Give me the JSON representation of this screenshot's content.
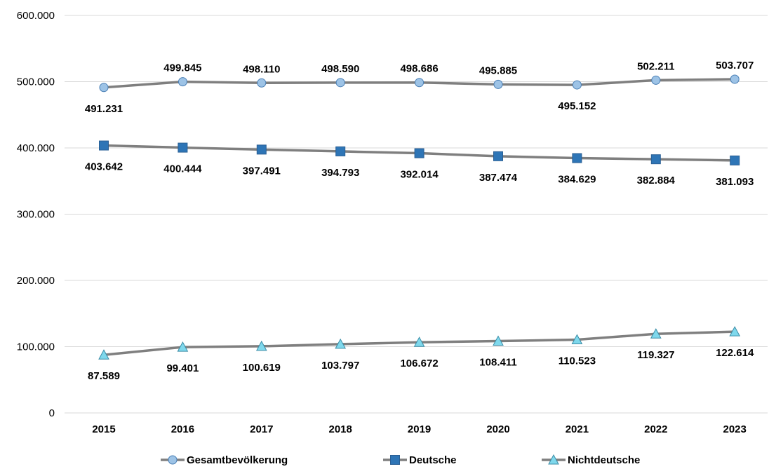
{
  "chart_data": {
    "type": "line",
    "title": "",
    "xlabel": "",
    "ylabel": "",
    "ylim": [
      0,
      600000
    ],
    "yticks": [
      {
        "value": 0,
        "label": "0"
      },
      {
        "value": 100000,
        "label": "100.000"
      },
      {
        "value": 200000,
        "label": "200.000"
      },
      {
        "value": 300000,
        "label": "300.000"
      },
      {
        "value": 400000,
        "label": "400.000"
      },
      {
        "value": 500000,
        "label": "500.000"
      },
      {
        "value": 600000,
        "label": "600.000"
      }
    ],
    "grid": "horizontal",
    "legend_position": "bottom",
    "categories": [
      "2015",
      "2016",
      "2017",
      "2018",
      "2019",
      "2020",
      "2021",
      "2022",
      "2023"
    ],
    "series": [
      {
        "name": "Gesamtbevölkerung",
        "marker": "circle",
        "marker_color": "#9dc3e6",
        "line_color": "#7f7f7f",
        "values": [
          491231,
          499845,
          498110,
          498590,
          498686,
          495885,
          495152,
          502211,
          503707
        ],
        "labels": [
          "491.231",
          "499.845",
          "498.110",
          "498.590",
          "498.686",
          "495.885",
          "495.152",
          "502.211",
          "503.707"
        ],
        "label_placement": [
          "below",
          "above",
          "above",
          "above",
          "above",
          "above",
          "below",
          "above",
          "above"
        ]
      },
      {
        "name": "Deutsche",
        "marker": "square",
        "marker_color": "#2e75b6",
        "line_color": "#7f7f7f",
        "values": [
          403642,
          400444,
          397491,
          394793,
          392014,
          387474,
          384629,
          382884,
          381093
        ],
        "labels": [
          "403.642",
          "400.444",
          "397.491",
          "394.793",
          "392.014",
          "387.474",
          "384.629",
          "382.884",
          "381.093"
        ],
        "label_placement": [
          "below",
          "below",
          "below",
          "below",
          "below",
          "below",
          "below",
          "below",
          "below"
        ]
      },
      {
        "name": "Nichtdeutsche",
        "marker": "triangle",
        "marker_color": "#7fd8ec",
        "line_color": "#7f7f7f",
        "values": [
          87589,
          99401,
          100619,
          103797,
          106672,
          108411,
          110523,
          119327,
          122614
        ],
        "labels": [
          "87.589",
          "99.401",
          "100.619",
          "103.797",
          "106.672",
          "108.411",
          "110.523",
          "119.327",
          "122.614"
        ],
        "label_placement": [
          "below",
          "below",
          "below",
          "below",
          "below",
          "below",
          "below",
          "below",
          "below"
        ]
      }
    ]
  }
}
